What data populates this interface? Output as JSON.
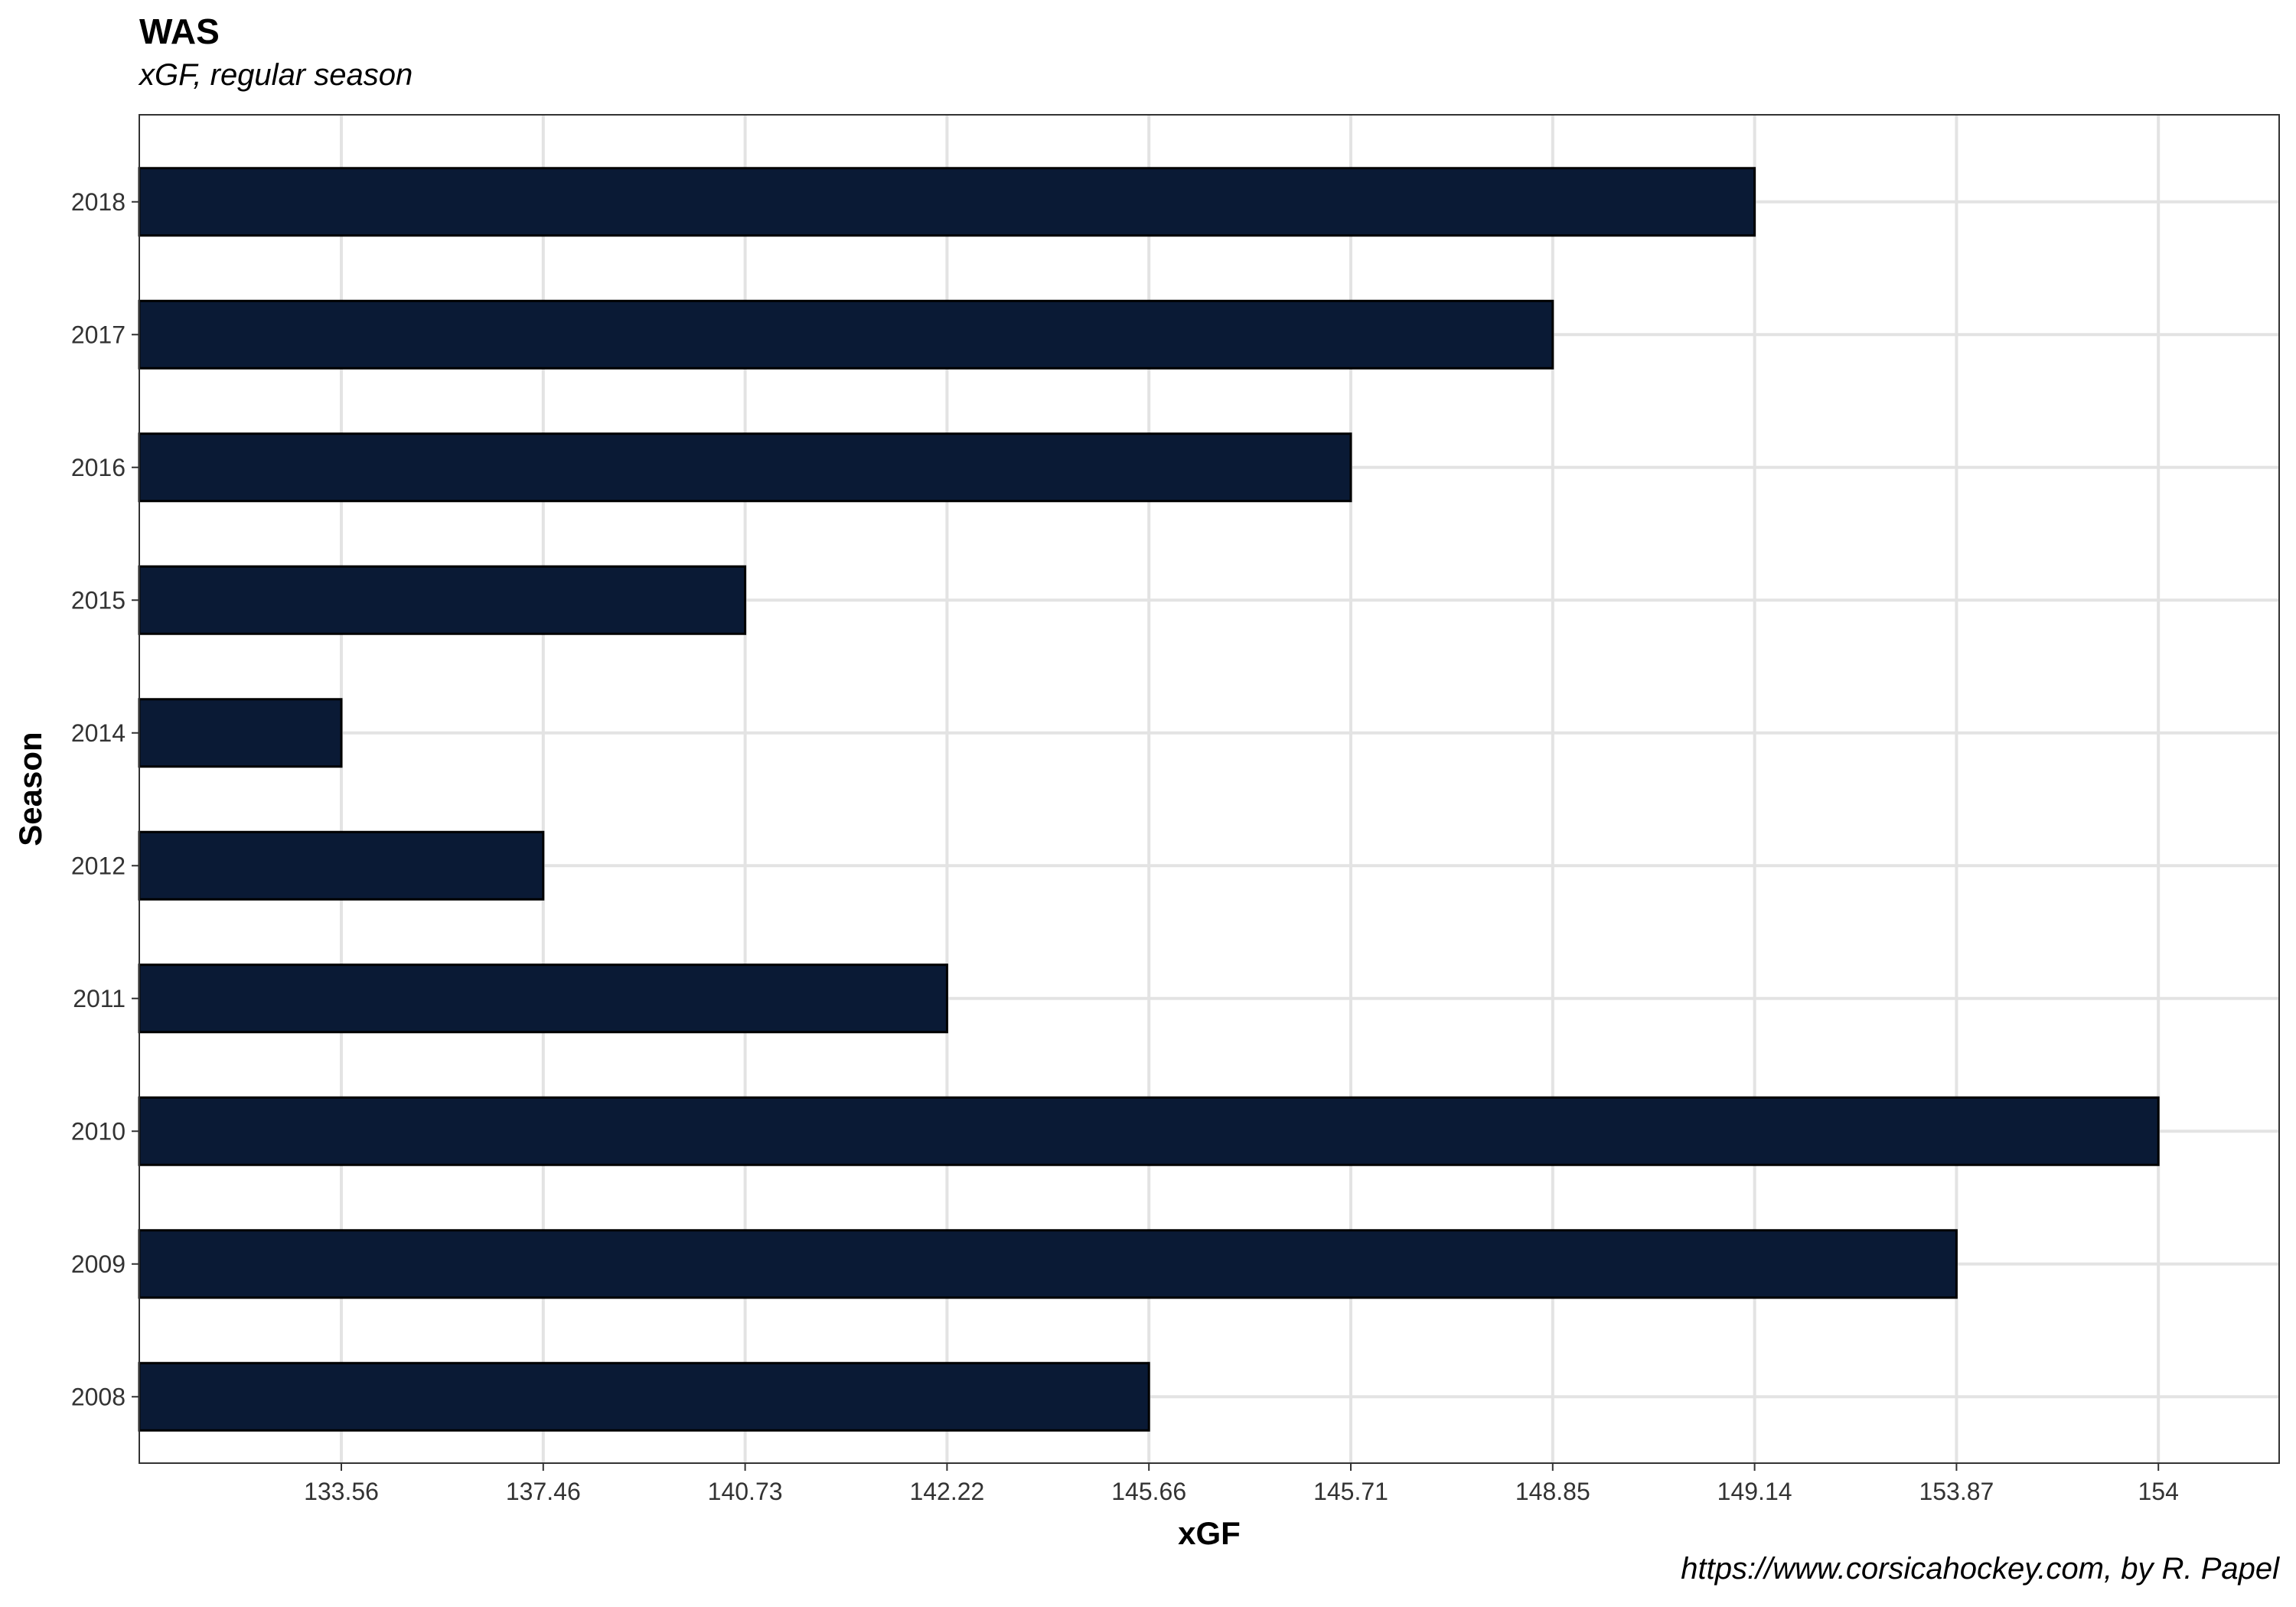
{
  "chart_data": {
    "type": "bar",
    "orientation": "horizontal",
    "title": "WAS",
    "subtitle": "xGF, regular season",
    "caption": "https://www.corsicahockey.com, by R. Papel",
    "xlabel": "xGF",
    "ylabel": "Season",
    "categories": [
      "2008",
      "2009",
      "2010",
      "2011",
      "2012",
      "2014",
      "2015",
      "2016",
      "2017",
      "2018"
    ],
    "values": [
      145.66,
      153.87,
      154,
      142.22,
      137.46,
      133.56,
      140.73,
      145.71,
      148.85,
      149.14
    ],
    "x_ticks": [
      "133.56",
      "137.46",
      "140.73",
      "142.22",
      "145.66",
      "145.71",
      "148.85",
      "149.14",
      "153.87",
      "154"
    ],
    "x_scale": "ordinal-rank",
    "grid": true,
    "legend": "none",
    "colors": {
      "bar_fill": "#0a1a35",
      "bar_stroke": "#000000",
      "grid": "#e3e3e3",
      "panel_border": "#333333"
    }
  }
}
